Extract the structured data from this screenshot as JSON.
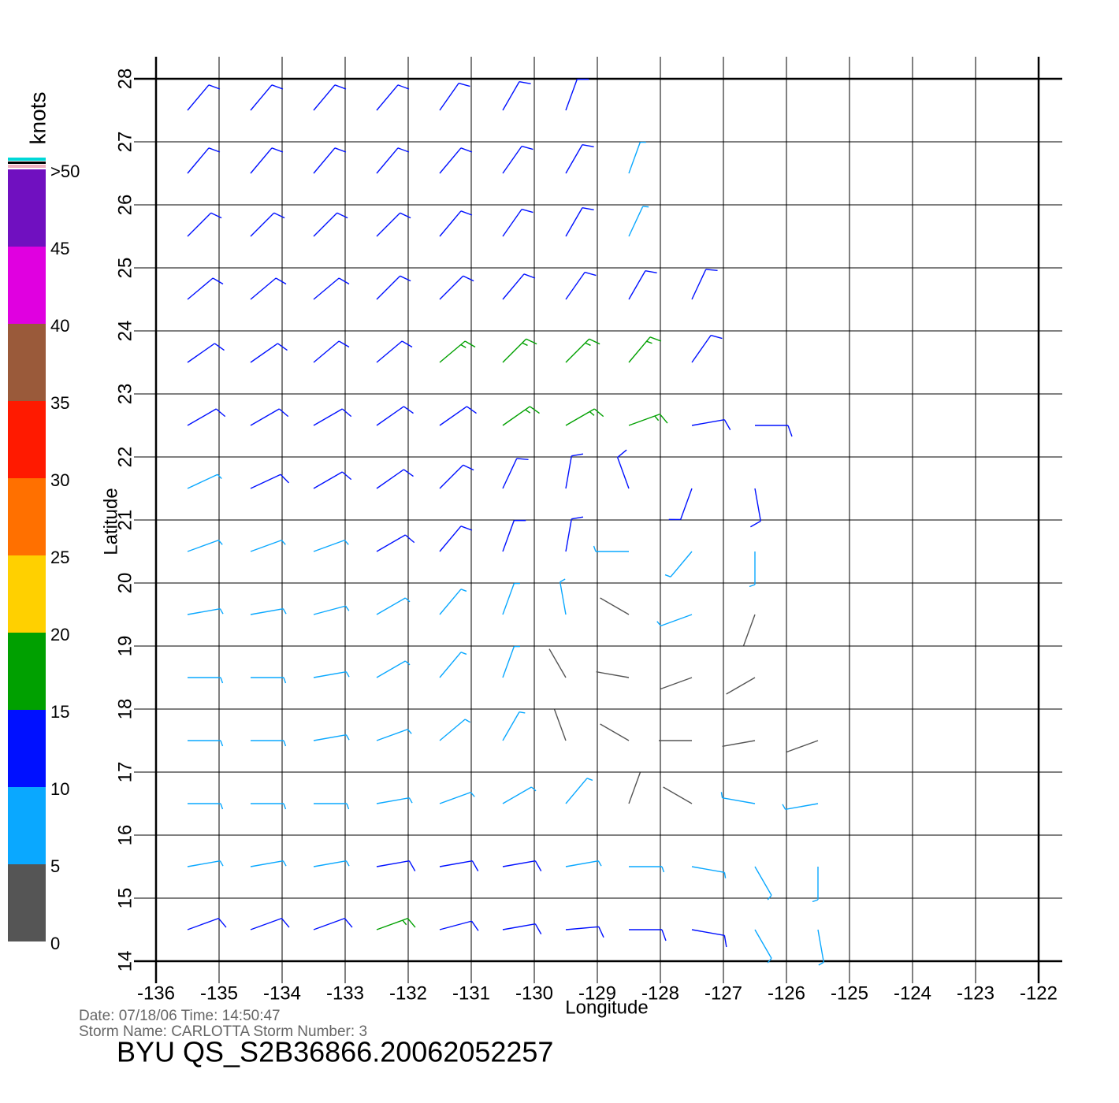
{
  "chart_data": {
    "type": "wind-barb",
    "xlabel": "Longitude",
    "ylabel": "Latitude",
    "xlim": [
      -136,
      -122
    ],
    "ylim": [
      14,
      28
    ],
    "xticks": [
      -136,
      -135,
      -134,
      -133,
      -132,
      -131,
      -130,
      -129,
      -128,
      -127,
      -126,
      -125,
      -124,
      -123,
      -122
    ],
    "yticks": [
      14,
      15,
      16,
      17,
      18,
      19,
      20,
      21,
      22,
      23,
      24,
      25,
      26,
      27,
      28
    ],
    "grid": true,
    "colorbar": {
      "title": "knots",
      "lim": [
        0,
        50
      ],
      "ticks": [
        0,
        5,
        10,
        15,
        20,
        25,
        30,
        35,
        40,
        45,
        {
          "value": 50,
          "label": ">50"
        }
      ],
      "colors": [
        "#555555",
        "#0aa8ff",
        "#0010ff",
        "#00a000",
        "#ffd000",
        "#ff7000",
        "#ff1a00",
        "#9a5a3a",
        "#e000e0",
        "#7010c0"
      ]
    },
    "wind": {
      "lon": [
        -135.5,
        -134.5,
        -133.5,
        -132.5,
        -131.5,
        -130.5,
        -129.5,
        -128.5,
        -127.5,
        -126.5,
        -125.5,
        -124.5
      ],
      "lat": [
        27.5,
        26.5,
        25.5,
        24.5,
        23.5,
        22.5,
        21.5,
        20.5,
        19.5,
        18.5,
        17.5,
        16.5,
        15.5,
        14.5
      ],
      "speed": [
        [
          14,
          13,
          14,
          13,
          12,
          12,
          11
        ],
        [
          13,
          13,
          13,
          13,
          12,
          12,
          11,
          9
        ],
        [
          12,
          13,
          13,
          13,
          13,
          12,
          11,
          9
        ],
        [
          12,
          12,
          13,
          13,
          14,
          14,
          13,
          12,
          10
        ],
        [
          11,
          12,
          12,
          13,
          15,
          16,
          16,
          15,
          12
        ],
        [
          10,
          11,
          12,
          12,
          14,
          16,
          17,
          16,
          13,
          10
        ],
        [
          9,
          10,
          11,
          11,
          12,
          14,
          14,
          12,
          13,
          11
        ],
        [
          9,
          9,
          9,
          10,
          10,
          11,
          11,
          6,
          7,
          6
        ],
        [
          8,
          8,
          8,
          9,
          9,
          8,
          7,
          4,
          5,
          4
        ],
        [
          8,
          8,
          8,
          8,
          7,
          6,
          4,
          3,
          3,
          3
        ],
        [
          8,
          8,
          8,
          8,
          7,
          6,
          4,
          3,
          3,
          4,
          4
        ],
        [
          8,
          8,
          9,
          9,
          8,
          7,
          6,
          4,
          4,
          5,
          5
        ],
        [
          8,
          9,
          9,
          10,
          10,
          10,
          9,
          9,
          9,
          6,
          6
        ],
        [
          10,
          11,
          13,
          16,
          14,
          12,
          11,
          10,
          10,
          8,
          7
        ]
      ],
      "direction": [
        [
          40,
          40,
          40,
          40,
          35,
          30,
          20
        ],
        [
          40,
          40,
          40,
          40,
          40,
          35,
          30,
          20
        ],
        [
          45,
          45,
          45,
          45,
          40,
          35,
          30,
          25
        ],
        [
          50,
          50,
          50,
          45,
          45,
          40,
          35,
          30,
          25
        ],
        [
          55,
          55,
          50,
          50,
          50,
          45,
          45,
          40,
          35
        ],
        [
          60,
          60,
          60,
          55,
          55,
          55,
          60,
          70,
          80,
          90
        ],
        [
          65,
          65,
          60,
          55,
          45,
          25,
          10,
          340,
          200,
          170
        ],
        [
          70,
          70,
          70,
          60,
          40,
          20,
          10,
          270,
          220,
          180
        ],
        [
          80,
          80,
          75,
          60,
          40,
          20,
          350,
          300,
          250,
          200
        ],
        [
          90,
          90,
          80,
          60,
          40,
          20,
          330,
          280,
          250,
          240
        ],
        [
          90,
          90,
          80,
          70,
          50,
          30,
          340,
          300,
          270,
          260,
          250
        ],
        [
          90,
          90,
          90,
          80,
          70,
          60,
          40,
          20,
          300,
          280,
          260
        ],
        [
          80,
          80,
          80,
          80,
          80,
          80,
          80,
          90,
          100,
          150,
          180
        ],
        [
          70,
          70,
          70,
          70,
          75,
          80,
          85,
          90,
          100,
          150,
          170
        ]
      ]
    },
    "footer": {
      "date_line": "Date:  07/18/06   Time:  14:50:47",
      "storm_line": "Storm  Name:  CARLOTTA    Storm  Number:  3",
      "file": "BYU  QS_S2B36866.20062052257"
    }
  }
}
